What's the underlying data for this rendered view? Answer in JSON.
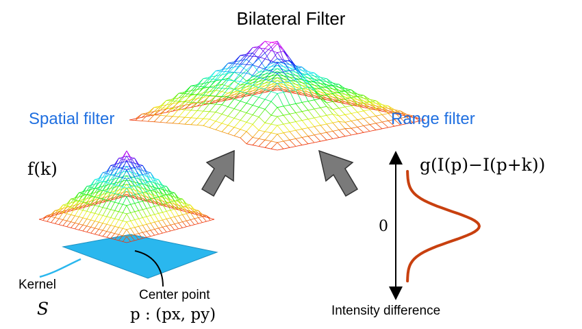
{
  "title": "Bilateral Filter",
  "spatial": {
    "label": "Spatial filter",
    "function": "f(k)",
    "kernel_label": "Kernel",
    "kernel_symbol": "S",
    "center_label": "Center point",
    "center_formula": "p : (px, py)"
  },
  "range": {
    "label": "Range filter",
    "function": "g(I(p)−I(p+k))",
    "zero_label": "0",
    "axis_label": "Intensity difference"
  },
  "colors": {
    "label_blue": "#1f6fe0",
    "kernel_plane": "#2ab7ee",
    "curve": "#c8400f",
    "arrow": "#777777"
  }
}
